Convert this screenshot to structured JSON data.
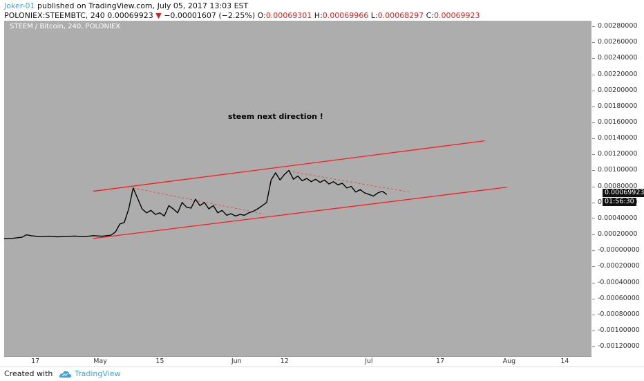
{
  "header": {
    "user": "Joker-01",
    "published": " published on TradingView.com, July 05, 2017 13:03 EST",
    "symbol": "POLONIEX:STEEMBTC, 240",
    "last": "0.00069923",
    "change": "−0.00001607 (−2.25%)",
    "o_label": "O:",
    "o_value": "0.00069301",
    "h_label": "H:",
    "h_value": "0.00069966",
    "l_label": "L:",
    "l_value": "0.00068297",
    "c_label": "C:",
    "c_value": "0.00069923"
  },
  "footer": {
    "created": "Created with",
    "brand": "TradingView"
  },
  "colors": {
    "background": "#adadad",
    "price_line": "#000000",
    "channel": "#ff1a1a",
    "trend_dashed": "#e05050"
  },
  "chart_data": {
    "type": "line",
    "title": "STEEM / Bitcoin, 240, POLONIEX",
    "annotation": "steem next direction !",
    "y_ticks": [
      "0.00280000",
      "0.00260000",
      "0.00240000",
      "0.00220000",
      "0.00200000",
      "0.00180000",
      "0.00160000",
      "0.00140000",
      "0.00120000",
      "0.00100000",
      "0.00080000",
      "0.00060000",
      "0.00040000",
      "0.00020000",
      "-0.00000000",
      "-0.00020000",
      "-0.00040000",
      "-0.00060000",
      "-0.00080000",
      "-0.00100000",
      "-0.00120000"
    ],
    "y_tick_values": [
      0.0028,
      0.0026,
      0.0024,
      0.0022,
      0.002,
      0.0018,
      0.0016,
      0.0014,
      0.0012,
      0.001,
      0.0008,
      0.0006,
      0.0004,
      0.0002,
      0,
      -0.0002,
      -0.0004,
      -0.0006,
      -0.0008,
      -0.001,
      -0.0012
    ],
    "x_ticks": [
      {
        "label": "17",
        "date": "2017-04-17"
      },
      {
        "label": "May",
        "date": "2017-05-01"
      },
      {
        "label": "15",
        "date": "2017-05-15"
      },
      {
        "label": "Jun",
        "date": "2017-06-01"
      },
      {
        "label": "12",
        "date": "2017-06-12"
      },
      {
        "label": "Jul",
        "date": "2017-07-01"
      },
      {
        "label": "17",
        "date": "2017-07-17"
      },
      {
        "label": "Aug",
        "date": "2017-08-01"
      },
      {
        "label": "14",
        "date": "2017-08-14"
      }
    ],
    "ylim": [
      -0.00132,
      0.00287
    ],
    "xlim": [
      "2017-04-10",
      "2017-08-20"
    ],
    "last_price_label": "0.00069923",
    "countdown_label": "01:56:30",
    "series": [
      {
        "points": [
          [
            "2017-04-10",
            0.000148
          ],
          [
            "2017-04-12",
            0.000152
          ],
          [
            "2017-04-14",
            0.000165
          ],
          [
            "2017-04-15",
            0.000195
          ],
          [
            "2017-04-16",
            0.000185
          ],
          [
            "2017-04-18",
            0.000172
          ],
          [
            "2017-04-20",
            0.000178
          ],
          [
            "2017-04-22",
            0.00017
          ],
          [
            "2017-04-24",
            0.000176
          ],
          [
            "2017-04-26",
            0.00018
          ],
          [
            "2017-04-28",
            0.000172
          ],
          [
            "2017-04-30",
            0.000185
          ],
          [
            "2017-05-02",
            0.000178
          ],
          [
            "2017-05-04",
            0.00019
          ],
          [
            "2017-05-05",
            0.00023
          ],
          [
            "2017-05-06",
            0.00033
          ],
          [
            "2017-05-07",
            0.00035
          ],
          [
            "2017-05-08",
            0.00052
          ],
          [
            "2017-05-09",
            0.00078
          ],
          [
            "2017-05-10",
            0.00065
          ],
          [
            "2017-05-11",
            0.00052
          ],
          [
            "2017-05-12",
            0.00047
          ],
          [
            "2017-05-13",
            0.0005
          ],
          [
            "2017-05-14",
            0.00045
          ],
          [
            "2017-05-15",
            0.00047
          ],
          [
            "2017-05-16",
            0.00043
          ],
          [
            "2017-05-17",
            0.00056
          ],
          [
            "2017-05-18",
            0.00052
          ],
          [
            "2017-05-19",
            0.00047
          ],
          [
            "2017-05-20",
            0.0006
          ],
          [
            "2017-05-21",
            0.00054
          ],
          [
            "2017-05-22",
            0.00053
          ],
          [
            "2017-05-23",
            0.00064
          ],
          [
            "2017-05-24",
            0.00056
          ],
          [
            "2017-05-25",
            0.0006
          ],
          [
            "2017-05-26",
            0.00052
          ],
          [
            "2017-05-27",
            0.00056
          ],
          [
            "2017-05-28",
            0.00047
          ],
          [
            "2017-05-29",
            0.0005
          ],
          [
            "2017-05-30",
            0.00044
          ],
          [
            "2017-05-31",
            0.00046
          ],
          [
            "2017-06-01",
            0.00043
          ],
          [
            "2017-06-02",
            0.00045
          ],
          [
            "2017-06-03",
            0.00044
          ],
          [
            "2017-06-04",
            0.00047
          ],
          [
            "2017-06-05",
            0.00049
          ],
          [
            "2017-06-06",
            0.00052
          ],
          [
            "2017-06-07",
            0.00056
          ],
          [
            "2017-06-08",
            0.0006
          ],
          [
            "2017-06-09",
            0.00088
          ],
          [
            "2017-06-10",
            0.00097
          ],
          [
            "2017-06-11",
            0.00088
          ],
          [
            "2017-06-12",
            0.00095
          ],
          [
            "2017-06-13",
            0.001
          ],
          [
            "2017-06-14",
            0.00089
          ],
          [
            "2017-06-15",
            0.00093
          ],
          [
            "2017-06-16",
            0.00087
          ],
          [
            "2017-06-17",
            0.0009
          ],
          [
            "2017-06-18",
            0.00086
          ],
          [
            "2017-06-19",
            0.00089
          ],
          [
            "2017-06-20",
            0.00085
          ],
          [
            "2017-06-21",
            0.00088
          ],
          [
            "2017-06-22",
            0.00083
          ],
          [
            "2017-06-23",
            0.00086
          ],
          [
            "2017-06-24",
            0.00082
          ],
          [
            "2017-06-25",
            0.00084
          ],
          [
            "2017-06-26",
            0.00078
          ],
          [
            "2017-06-27",
            0.0008
          ],
          [
            "2017-06-28",
            0.00073
          ],
          [
            "2017-06-29",
            0.00076
          ],
          [
            "2017-06-30",
            0.00072
          ],
          [
            "2017-07-01",
            0.0007
          ],
          [
            "2017-07-02",
            0.00068
          ],
          [
            "2017-07-03",
            0.00072
          ],
          [
            "2017-07-04",
            0.00074
          ],
          [
            "2017-07-05",
            0.000699
          ]
        ]
      }
    ],
    "channel_lines": [
      {
        "from": [
          "2017-04-30",
          0.00015
        ],
        "to": [
          "2017-08-01",
          0.00079
        ]
      },
      {
        "from": [
          "2017-04-30",
          0.00074
        ],
        "to": [
          "2017-07-27",
          0.00137
        ]
      }
    ],
    "dashed_lines": [
      {
        "from": [
          "2017-05-09",
          0.00078
        ],
        "to": [
          "2017-06-07",
          0.00046
        ]
      },
      {
        "from": [
          "2017-06-13",
          0.00099
        ],
        "to": [
          "2017-07-10",
          0.00073
        ]
      }
    ]
  }
}
